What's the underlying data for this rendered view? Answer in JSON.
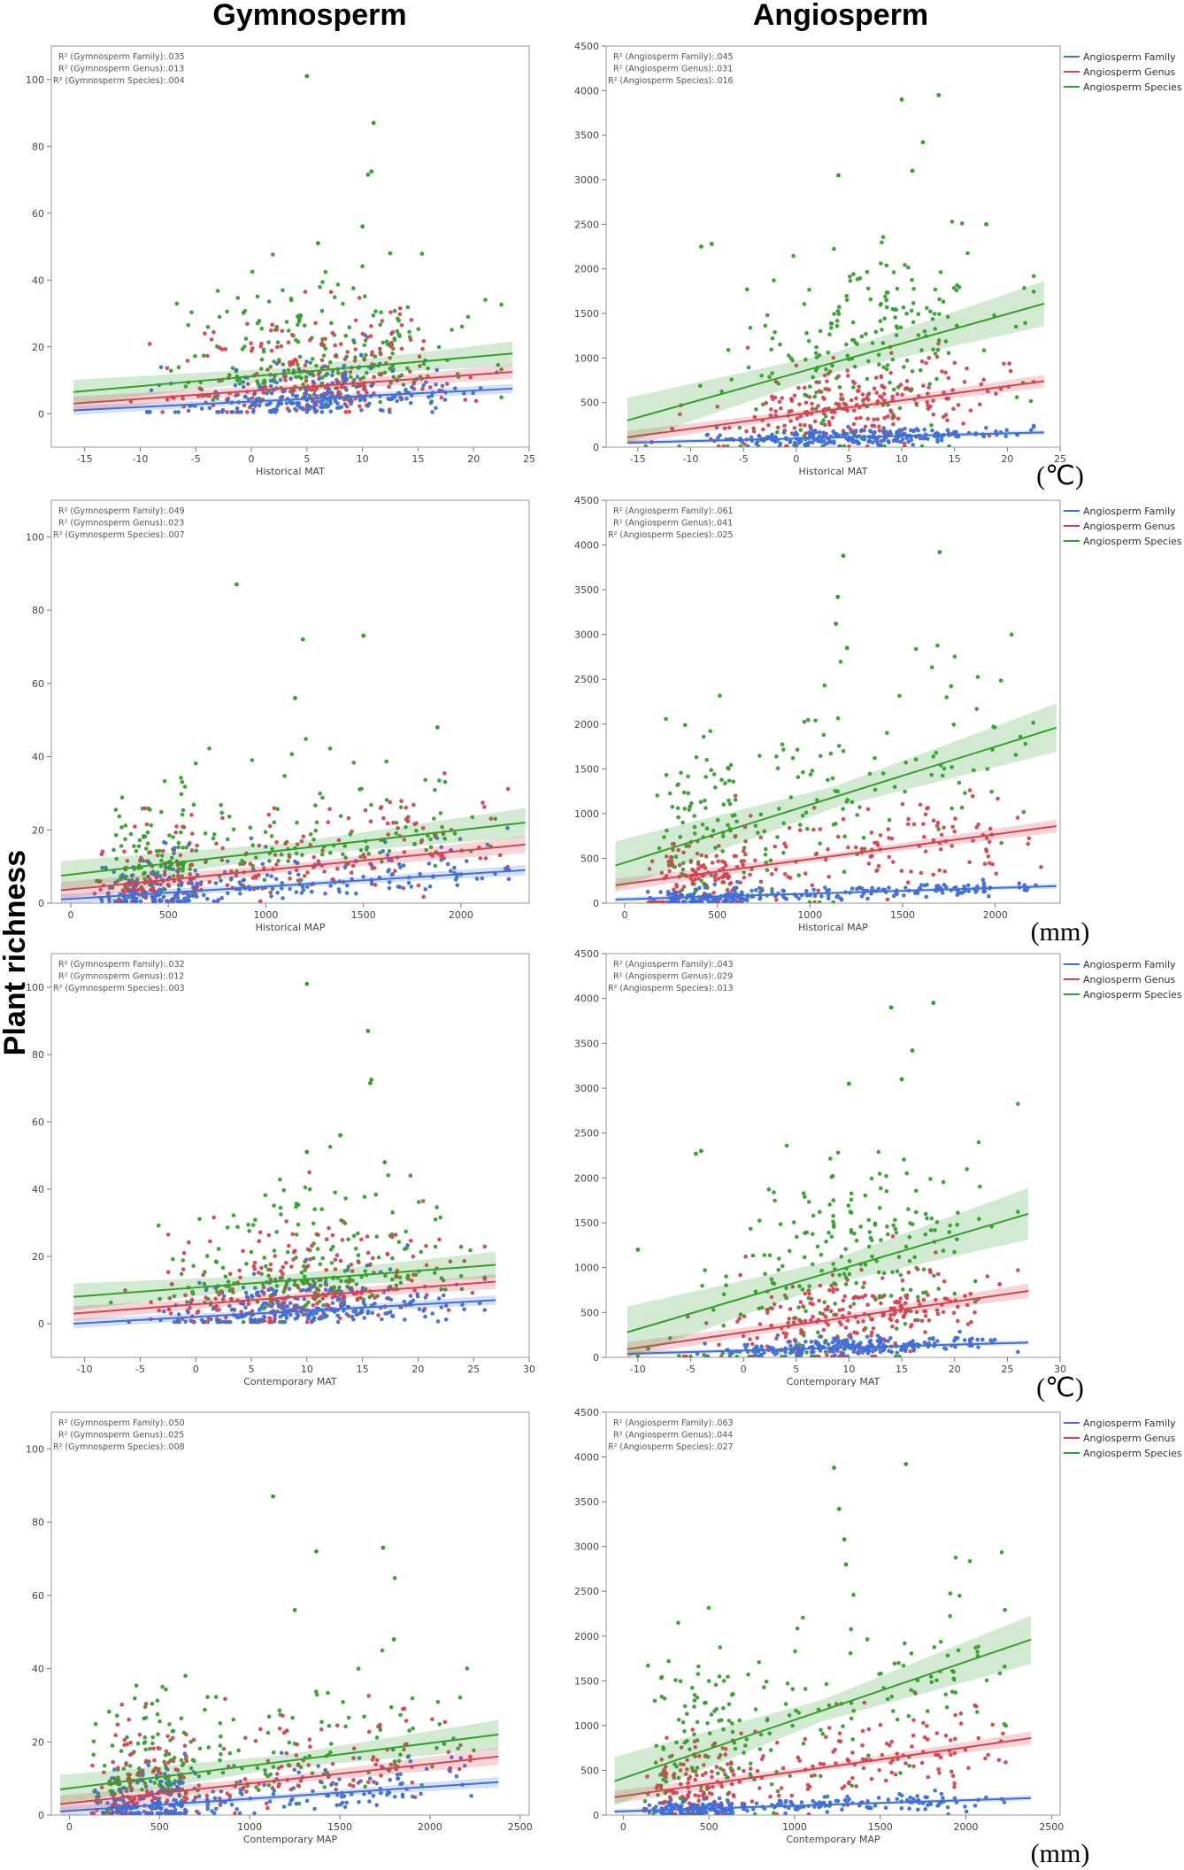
{
  "figure": {
    "column_titles": [
      "Gymnosperm",
      "Angiosperm"
    ],
    "y_title": "Plant richness",
    "units": [
      "(℃)",
      "(mm)",
      "(℃)",
      "(mm)"
    ]
  },
  "colors": {
    "family": "#3f6fd8",
    "genus": "#d8424f",
    "species": "#33a02c"
  },
  "chart_data": [
    {
      "type": "scatter",
      "panel": "gymnosperm-historical-mat",
      "xlabel": "Historical MAT",
      "xlim": [
        -18,
        25
      ],
      "ylim": [
        -10,
        110
      ],
      "xticks": [
        "-15",
        "-10",
        "-5",
        "0",
        "5",
        "10",
        "15",
        "20",
        "25"
      ],
      "yticks": [
        "0",
        "20",
        "40",
        "60",
        "80",
        "100"
      ],
      "r2": [
        "R² (Gymnosperm Family):.035",
        "R² (Gymnosperm Genus):.013",
        "R² (Gymnosperm Species):.004"
      ],
      "legend": [],
      "series": [
        {
          "name": "Gymnosperm Family",
          "color": "family",
          "line": [
            [
              -16,
              1
            ],
            [
              23.5,
              7.5
            ]
          ],
          "band": 0.8
        },
        {
          "name": "Gymnosperm Genus",
          "color": "genus",
          "line": [
            [
              -16,
              3
            ],
            [
              23.5,
              12.5
            ]
          ],
          "band": 1.2
        },
        {
          "name": "Gymnosperm Species",
          "color": "species",
          "line": [
            [
              -16,
              6.5
            ],
            [
              23.5,
              18
            ]
          ],
          "band": 2
        }
      ],
      "extremes": [
        [
          5,
          101
        ],
        [
          11,
          87
        ],
        [
          10.8,
          72.5
        ],
        [
          10.5,
          71.5
        ],
        [
          10,
          56
        ],
        [
          6,
          51
        ],
        [
          12.5,
          48
        ]
      ]
    },
    {
      "type": "scatter",
      "panel": "angiosperm-historical-mat",
      "xlabel": "Historical MAT",
      "xlim": [
        -18,
        25
      ],
      "ylim": [
        0,
        4500
      ],
      "xticks": [
        "-15",
        "-10",
        "-5",
        "0",
        "5",
        "10",
        "15",
        "20",
        "25"
      ],
      "yticks": [
        "0",
        "500",
        "1000",
        "1500",
        "2000",
        "2500",
        "3000",
        "3500",
        "4000",
        "4500"
      ],
      "r2": [
        "R² (Angiosperm Family):.045",
        "R² (Angiosperm Genus):.031",
        "R² (Angiosperm Species):.016"
      ],
      "legend": [
        "Angiosperm Family",
        "Angiosperm Genus",
        "Angiosperm Species"
      ],
      "series": [
        {
          "name": "Angiosperm Family",
          "color": "family",
          "line": [
            [
              -16,
              50
            ],
            [
              23.5,
              165
            ]
          ],
          "band": 15
        },
        {
          "name": "Angiosperm Genus",
          "color": "genus",
          "line": [
            [
              -16,
              110
            ],
            [
              23.5,
              740
            ]
          ],
          "band": 40
        },
        {
          "name": "Angiosperm Species",
          "color": "species",
          "line": [
            [
              -16,
              300
            ],
            [
              23.5,
              1610
            ]
          ],
          "band": 140
        }
      ],
      "extremes": [
        [
          13.5,
          3950
        ],
        [
          10,
          3900
        ],
        [
          11,
          3100
        ],
        [
          12,
          3420
        ],
        [
          4,
          3050
        ],
        [
          -9,
          2250
        ],
        [
          -8,
          2280
        ],
        [
          18,
          2500
        ]
      ]
    },
    {
      "type": "scatter",
      "panel": "gymnosperm-historical-map",
      "xlabel": "Historical MAP",
      "xlim": [
        -100,
        2350
      ],
      "ylim": [
        0,
        110
      ],
      "xticks": [
        "0",
        "500",
        "1000",
        "1500",
        "2000"
      ],
      "yticks": [
        "0",
        "20",
        "40",
        "60",
        "80",
        "100"
      ],
      "r2": [
        "R² (Gymnosperm Family):.049",
        "R² (Gymnosperm Genus):.023",
        "R² (Gymnosperm Species):.007"
      ],
      "legend": [],
      "series": [
        {
          "name": "Gymnosperm Family",
          "color": "family",
          "line": [
            [
              -50,
              1
            ],
            [
              2330,
              9
            ]
          ],
          "band": 0.8
        },
        {
          "name": "Gymnosperm Genus",
          "color": "genus",
          "line": [
            [
              -50,
              3.5
            ],
            [
              2330,
              16
            ]
          ],
          "band": 1.3
        },
        {
          "name": "Gymnosperm Species",
          "color": "species",
          "line": [
            [
              -50,
              7.5
            ],
            [
              2330,
              22
            ]
          ],
          "band": 2.2
        }
      ],
      "extremes": [
        [
          850,
          87
        ],
        [
          1190,
          72
        ],
        [
          1500,
          73
        ],
        [
          1150,
          56
        ],
        [
          1880,
          48
        ]
      ]
    },
    {
      "type": "scatter",
      "panel": "angiosperm-historical-map",
      "xlabel": "Historical MAP",
      "xlim": [
        -100,
        2350
      ],
      "ylim": [
        0,
        4500
      ],
      "xticks": [
        "0",
        "500",
        "1000",
        "1500",
        "2000"
      ],
      "yticks": [
        "0",
        "500",
        "1000",
        "1500",
        "2000",
        "2500",
        "3000",
        "3500",
        "4000",
        "4500"
      ],
      "r2": [
        "R² (Angiosperm Family):.061",
        "R² (Angiosperm Genus):.041",
        "R² (Angiosperm Species):.025"
      ],
      "legend": [
        "Angiosperm Family",
        "Angiosperm Genus",
        "Angiosperm Species"
      ],
      "series": [
        {
          "name": "Angiosperm Family",
          "color": "family",
          "line": [
            [
              -50,
              40
            ],
            [
              2330,
              190
            ]
          ],
          "band": 15
        },
        {
          "name": "Angiosperm Genus",
          "color": "genus",
          "line": [
            [
              -50,
              200
            ],
            [
              2330,
              860
            ]
          ],
          "band": 40
        },
        {
          "name": "Angiosperm Species",
          "color": "species",
          "line": [
            [
              -50,
              420
            ],
            [
              2330,
              1960
            ]
          ],
          "band": 150
        }
      ],
      "extremes": [
        [
          1180,
          3880
        ],
        [
          1700,
          3920
        ],
        [
          1150,
          3420
        ],
        [
          1140,
          3120
        ],
        [
          1200,
          2850
        ]
      ]
    },
    {
      "type": "scatter",
      "panel": "gymnosperm-contemporary-mat",
      "xlabel": "Contemporary MAT",
      "xlim": [
        -13,
        30
      ],
      "ylim": [
        -10,
        110
      ],
      "xticks": [
        "-10",
        "-5",
        "0",
        "5",
        "10",
        "15",
        "20",
        "25",
        "30"
      ],
      "yticks": [
        "0",
        "20",
        "40",
        "60",
        "80",
        "100"
      ],
      "r2": [
        "R² (Gymnosperm Family):.032",
        "R² (Gymnosperm Genus):.012",
        "R² (Gymnosperm Species):.003"
      ],
      "legend": [],
      "series": [
        {
          "name": "Gymnosperm Family",
          "color": "family",
          "line": [
            [
              -11,
              0
            ],
            [
              27,
              7
            ]
          ],
          "band": 0.8
        },
        {
          "name": "Gymnosperm Genus",
          "color": "genus",
          "line": [
            [
              -11,
              3
            ],
            [
              27,
              12.5
            ]
          ],
          "band": 1.2
        },
        {
          "name": "Gymnosperm Species",
          "color": "species",
          "line": [
            [
              -11,
              8
            ],
            [
              27,
              17.5
            ]
          ],
          "band": 2.2
        }
      ],
      "extremes": [
        [
          10,
          101
        ],
        [
          15.5,
          87
        ],
        [
          15.8,
          72.5
        ],
        [
          15.7,
          71.5
        ],
        [
          13,
          56
        ],
        [
          10,
          51
        ],
        [
          17,
          48
        ]
      ]
    },
    {
      "type": "scatter",
      "panel": "angiosperm-contemporary-mat",
      "xlabel": "Contemporary MAT",
      "xlim": [
        -13,
        30
      ],
      "ylim": [
        0,
        4500
      ],
      "xticks": [
        "-10",
        "-5",
        "0",
        "5",
        "10",
        "15",
        "20",
        "25",
        "30"
      ],
      "yticks": [
        "0",
        "500",
        "1000",
        "1500",
        "2000",
        "2500",
        "3000",
        "3500",
        "4000",
        "4500"
      ],
      "r2": [
        "R² (Angiosperm Family):.043",
        "R² (Angiosperm Genus):.029",
        "R² (Angiosperm Species):.013"
      ],
      "legend": [
        "Angiosperm Family",
        "Angiosperm Genus",
        "Angiosperm Species"
      ],
      "series": [
        {
          "name": "Angiosperm Family",
          "color": "family",
          "line": [
            [
              -11,
              40
            ],
            [
              27,
              165
            ]
          ],
          "band": 15
        },
        {
          "name": "Angiosperm Genus",
          "color": "genus",
          "line": [
            [
              -11,
              90
            ],
            [
              27,
              740
            ]
          ],
          "band": 45
        },
        {
          "name": "Angiosperm Species",
          "color": "species",
          "line": [
            [
              -11,
              280
            ],
            [
              27,
              1600
            ]
          ],
          "band": 160
        }
      ],
      "extremes": [
        [
          18,
          3950
        ],
        [
          14,
          3900
        ],
        [
          16,
          3420
        ],
        [
          15,
          3100
        ],
        [
          10,
          3050
        ],
        [
          -4,
          2300
        ],
        [
          -4.5,
          2270
        ],
        [
          -10,
          1200
        ]
      ]
    },
    {
      "type": "scatter",
      "panel": "gymnosperm-contemporary-map",
      "xlabel": "Contemporary MAP",
      "xlim": [
        -100,
        2550
      ],
      "ylim": [
        0,
        110
      ],
      "xticks": [
        "0",
        "500",
        "1000",
        "1500",
        "2000",
        "2500"
      ],
      "yticks": [
        "0",
        "20",
        "40",
        "60",
        "80",
        "100"
      ],
      "r2": [
        "R² (Gymnosperm Family):.050",
        "R² (Gymnosperm Genus):.025",
        "R² (Gymnosperm Species):.008"
      ],
      "legend": [],
      "series": [
        {
          "name": "Gymnosperm Family",
          "color": "family",
          "line": [
            [
              -50,
              1
            ],
            [
              2380,
              9
            ]
          ],
          "band": 0.8
        },
        {
          "name": "Gymnosperm Genus",
          "color": "genus",
          "line": [
            [
              -50,
              3
            ],
            [
              2380,
              16
            ]
          ],
          "band": 1.3
        },
        {
          "name": "Gymnosperm Species",
          "color": "species",
          "line": [
            [
              -50,
              7
            ],
            [
              2380,
              22
            ]
          ],
          "band": 2.2
        }
      ],
      "extremes": [
        [
          1130,
          87
        ],
        [
          1370,
          72
        ],
        [
          1740,
          73
        ],
        [
          1250,
          56
        ],
        [
          1800,
          48
        ]
      ]
    },
    {
      "type": "scatter",
      "panel": "angiosperm-contemporary-map",
      "xlabel": "Contemporary MAP",
      "xlim": [
        -100,
        2550
      ],
      "ylim": [
        0,
        4500
      ],
      "xticks": [
        "0",
        "500",
        "1000",
        "1500",
        "2000",
        "2500"
      ],
      "yticks": [
        "0",
        "500",
        "1000",
        "1500",
        "2000",
        "2500",
        "3000",
        "3500",
        "4000",
        "4500"
      ],
      "r2": [
        "R² (Angiosperm Family):.063",
        "R² (Angiosperm Genus):.044",
        "R² (Angiosperm Species):.027"
      ],
      "legend": [
        "Angiosperm Family",
        "Angiosperm Genus",
        "Angiosperm Species"
      ],
      "series": [
        {
          "name": "Angiosperm Family",
          "color": "family",
          "line": [
            [
              -50,
              40
            ],
            [
              2380,
              190
            ]
          ],
          "band": 15
        },
        {
          "name": "Angiosperm Genus",
          "color": "genus",
          "line": [
            [
              -50,
              200
            ],
            [
              2380,
              860
            ]
          ],
          "band": 40
        },
        {
          "name": "Angiosperm Species",
          "color": "species",
          "line": [
            [
              -50,
              380
            ],
            [
              2380,
              1960
            ]
          ],
          "band": 150
        }
      ],
      "extremes": [
        [
          1230,
          3880
        ],
        [
          1650,
          3920
        ],
        [
          1260,
          3420
        ],
        [
          1290,
          3080
        ],
        [
          1300,
          2800
        ]
      ]
    }
  ]
}
